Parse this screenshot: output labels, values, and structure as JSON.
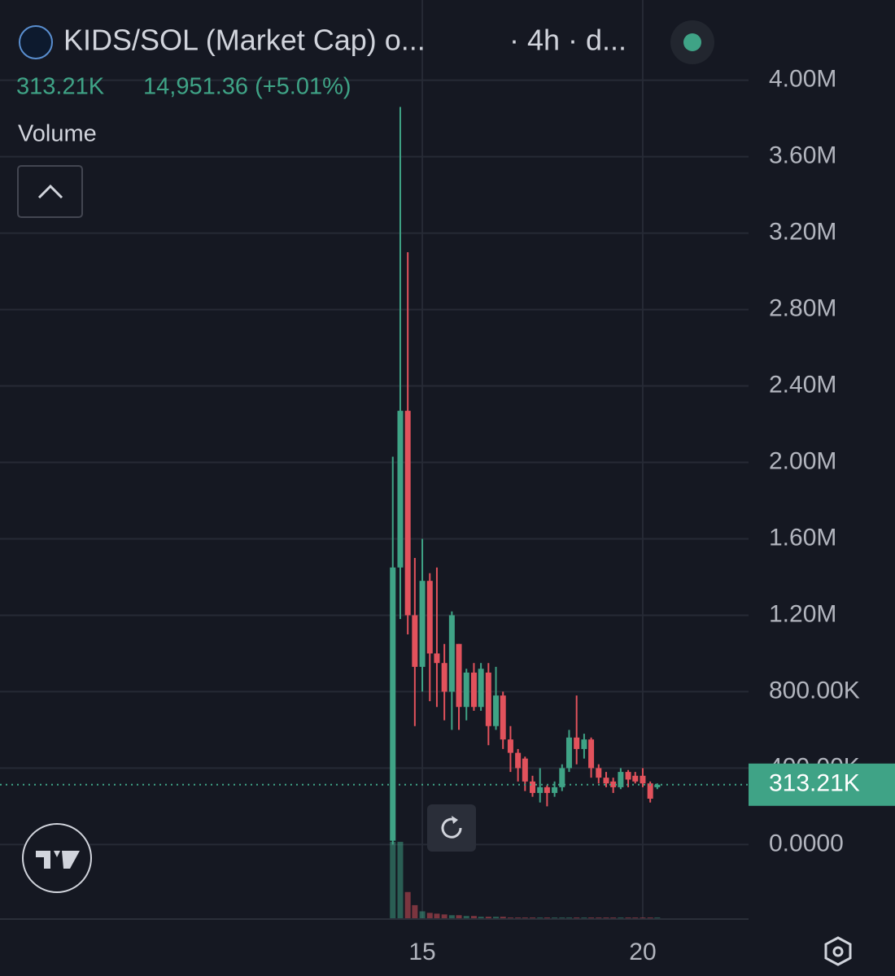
{
  "chart_data": {
    "type": "candlestick",
    "title": "KIDS/SOL (Market Cap) o...",
    "interval": "· 4h · d...",
    "change": "14,951.36 (+5.01%)",
    "volume_label": "Volume",
    "up_color": "#3fa386",
    "down_color": "#e2525c",
    "grid": true,
    "x": [
      14.33,
      14.5,
      14.67,
      14.83,
      15,
      15.17,
      15.33,
      15.5,
      15.67,
      15.83,
      16,
      16.17,
      16.33,
      16.5,
      16.67,
      16.83,
      17,
      17.17,
      17.33,
      17.5,
      17.67,
      17.83,
      18,
      18.17,
      18.33,
      18.5,
      18.67,
      18.83,
      19,
      19.17,
      19.33,
      19.5,
      19.67,
      19.83,
      20,
      20.17,
      20.33
    ],
    "open": [
      20000,
      1450000,
      2270000,
      1200000,
      930000,
      1380000,
      1000000,
      950000,
      800000,
      1050000,
      720000,
      900000,
      720000,
      900000,
      620000,
      780000,
      550000,
      480000,
      450000,
      330000,
      270000,
      300000,
      270000,
      300000,
      400000,
      560000,
      500000,
      550000,
      400000,
      350000,
      330000,
      300000,
      380000,
      360000,
      360000,
      320000,
      300000
    ],
    "high": [
      2030000,
      3860000,
      3100000,
      1500000,
      1600000,
      1420000,
      1450000,
      1050000,
      1220000,
      1050000,
      920000,
      950000,
      950000,
      950000,
      930000,
      800000,
      620000,
      500000,
      460000,
      360000,
      400000,
      310000,
      330000,
      420000,
      600000,
      780000,
      580000,
      560000,
      420000,
      380000,
      350000,
      400000,
      390000,
      380000,
      400000,
      330000,
      320000
    ],
    "low": [
      0,
      1180000,
      1100000,
      620000,
      800000,
      750000,
      720000,
      650000,
      600000,
      600000,
      650000,
      700000,
      700000,
      520000,
      600000,
      500000,
      380000,
      330000,
      280000,
      250000,
      220000,
      200000,
      250000,
      280000,
      380000,
      420000,
      450000,
      350000,
      320000,
      300000,
      270000,
      290000,
      300000,
      320000,
      300000,
      220000,
      290000
    ],
    "close": [
      1450000,
      2270000,
      1200000,
      930000,
      1380000,
      1000000,
      950000,
      800000,
      1200000,
      720000,
      900000,
      720000,
      920000,
      620000,
      780000,
      550000,
      480000,
      400000,
      330000,
      270000,
      300000,
      270000,
      300000,
      400000,
      560000,
      500000,
      550000,
      400000,
      350000,
      320000,
      300000,
      380000,
      340000,
      330000,
      320000,
      240000,
      313210
    ],
    "volume": [
      100,
      100,
      35,
      18,
      10,
      8,
      7,
      6,
      5,
      5,
      4,
      4,
      3,
      3,
      3,
      3,
      2,
      2,
      2,
      2,
      2,
      2,
      2,
      2,
      2,
      2,
      2,
      2,
      2,
      2,
      2,
      2,
      2,
      2,
      2,
      2,
      2
    ],
    "last_price": {
      "value": 313210,
      "label": "313.21K"
    },
    "xlim": [
      5.42,
      22.4
    ],
    "xticks": [
      15,
      20
    ],
    "ylim": [
      -390000,
      4420000
    ],
    "yticks": [
      {
        "value": 0,
        "label": "0.0000"
      },
      {
        "value": 400000,
        "label": "400.00K"
      },
      {
        "value": 800000,
        "label": "800.00K"
      },
      {
        "value": 1200000,
        "label": "1.20M"
      },
      {
        "value": 1600000,
        "label": "1.60M"
      },
      {
        "value": 2000000,
        "label": "2.00M"
      },
      {
        "value": 2400000,
        "label": "2.40M"
      },
      {
        "value": 2800000,
        "label": "2.80M"
      },
      {
        "value": 3200000,
        "label": "3.20M"
      },
      {
        "value": 3600000,
        "label": "3.60M"
      },
      {
        "value": 4000000,
        "label": "4.00M"
      }
    ]
  }
}
